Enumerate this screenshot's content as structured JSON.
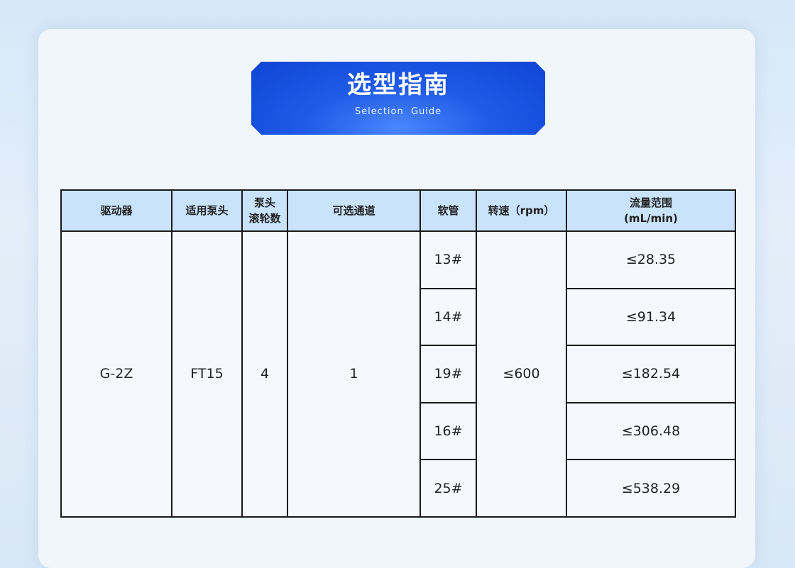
{
  "banner": {
    "title": "选型指南",
    "subtitle": "Selection  Guide"
  },
  "table": {
    "headers": [
      "驱动器",
      "适用泵头",
      "泵头\n滚轮数",
      "可选通道",
      "软管",
      "转速（rpm）",
      "流量范围\n(mL/min)"
    ],
    "driver": "G-2Z",
    "pump_head": "FT15",
    "rollers": "4",
    "channels": "1",
    "speed": "≤600",
    "rows": [
      {
        "tube": "13#",
        "flow": "≤28.35"
      },
      {
        "tube": "14#",
        "flow": "≤91.34"
      },
      {
        "tube": "19#",
        "flow": "≤182.54"
      },
      {
        "tube": "16#",
        "flow": "≤306.48"
      },
      {
        "tube": "25#",
        "flow": "≤538.29"
      }
    ]
  }
}
